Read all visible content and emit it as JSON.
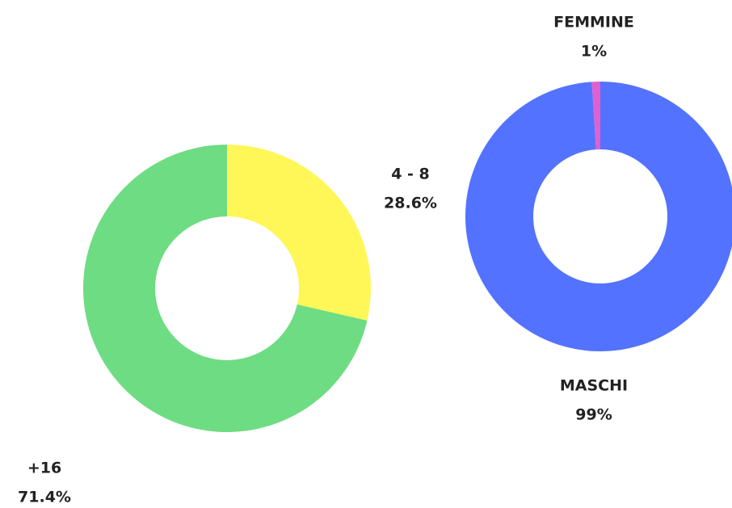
{
  "chart_data": [
    {
      "type": "donut",
      "categories": [
        "4 - 8",
        "+16"
      ],
      "values": [
        28.6,
        71.4
      ],
      "value_labels": [
        "28.6%",
        "71.4%"
      ],
      "colors": [
        "#fff757",
        "#6edc82"
      ]
    },
    {
      "type": "donut",
      "categories": [
        "MASCHI",
        "FEMMINE"
      ],
      "values": [
        99,
        1
      ],
      "value_labels": [
        "99%",
        "1%"
      ],
      "colors": [
        "#5372ff",
        "#e060d0"
      ]
    }
  ]
}
